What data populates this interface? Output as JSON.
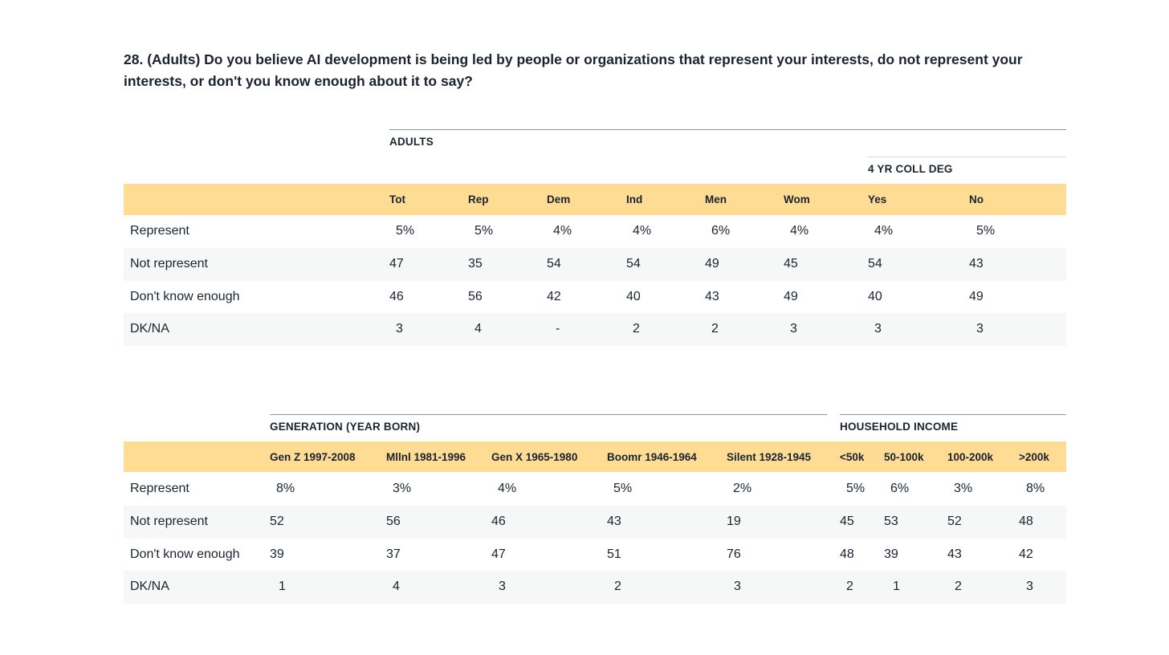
{
  "question": "28. (Adults) Do you believe AI development is being led by people or organizations that represent your interests, do not represent your interests, or don't you know enough about it to say?",
  "table1": {
    "group_adults": "ADULTS",
    "group_college": "4 YR COLL DEG",
    "columns": [
      "Tot",
      "Rep",
      "Dem",
      "Ind",
      "Men",
      "Wom",
      "Yes",
      "No"
    ],
    "rows": [
      {
        "label": "Represent",
        "values": [
          "5%",
          "5%",
          "4%",
          "4%",
          "6%",
          "4%",
          "4%",
          "5%"
        ]
      },
      {
        "label": "Not represent",
        "values": [
          "47",
          "35",
          "54",
          "54",
          "49",
          "45",
          "54",
          "43"
        ]
      },
      {
        "label": "Don't know enough",
        "values": [
          "46",
          "56",
          "42",
          "40",
          "43",
          "49",
          "40",
          "49"
        ]
      },
      {
        "label": "DK/NA",
        "values": [
          "3",
          "4",
          "-",
          "2",
          "2",
          "3",
          "3",
          "3"
        ]
      }
    ]
  },
  "table2": {
    "group_generation": "GENERATION (YEAR BORN)",
    "group_income": "HOUSEHOLD INCOME",
    "columns": [
      "Gen Z 1997-2008",
      "Mllnl 1981-1996",
      "Gen X 1965-1980",
      "Boomr 1946-1964",
      "Silent 1928-1945",
      "<50k",
      "50-100k",
      "100-200k",
      ">200k"
    ],
    "rows": [
      {
        "label": "Represent",
        "values": [
          "8%",
          "3%",
          "4%",
          "5%",
          "2%",
          "5%",
          "6%",
          "3%",
          "8%"
        ]
      },
      {
        "label": "Not represent",
        "values": [
          "52",
          "56",
          "46",
          "43",
          "19",
          "45",
          "53",
          "52",
          "48"
        ]
      },
      {
        "label": "Don't know enough",
        "values": [
          "39",
          "37",
          "47",
          "51",
          "76",
          "48",
          "39",
          "43",
          "42"
        ]
      },
      {
        "label": "DK/NA",
        "values": [
          "1",
          "4",
          "3",
          "2",
          "3",
          "2",
          "1",
          "2",
          "3"
        ]
      }
    ]
  }
}
